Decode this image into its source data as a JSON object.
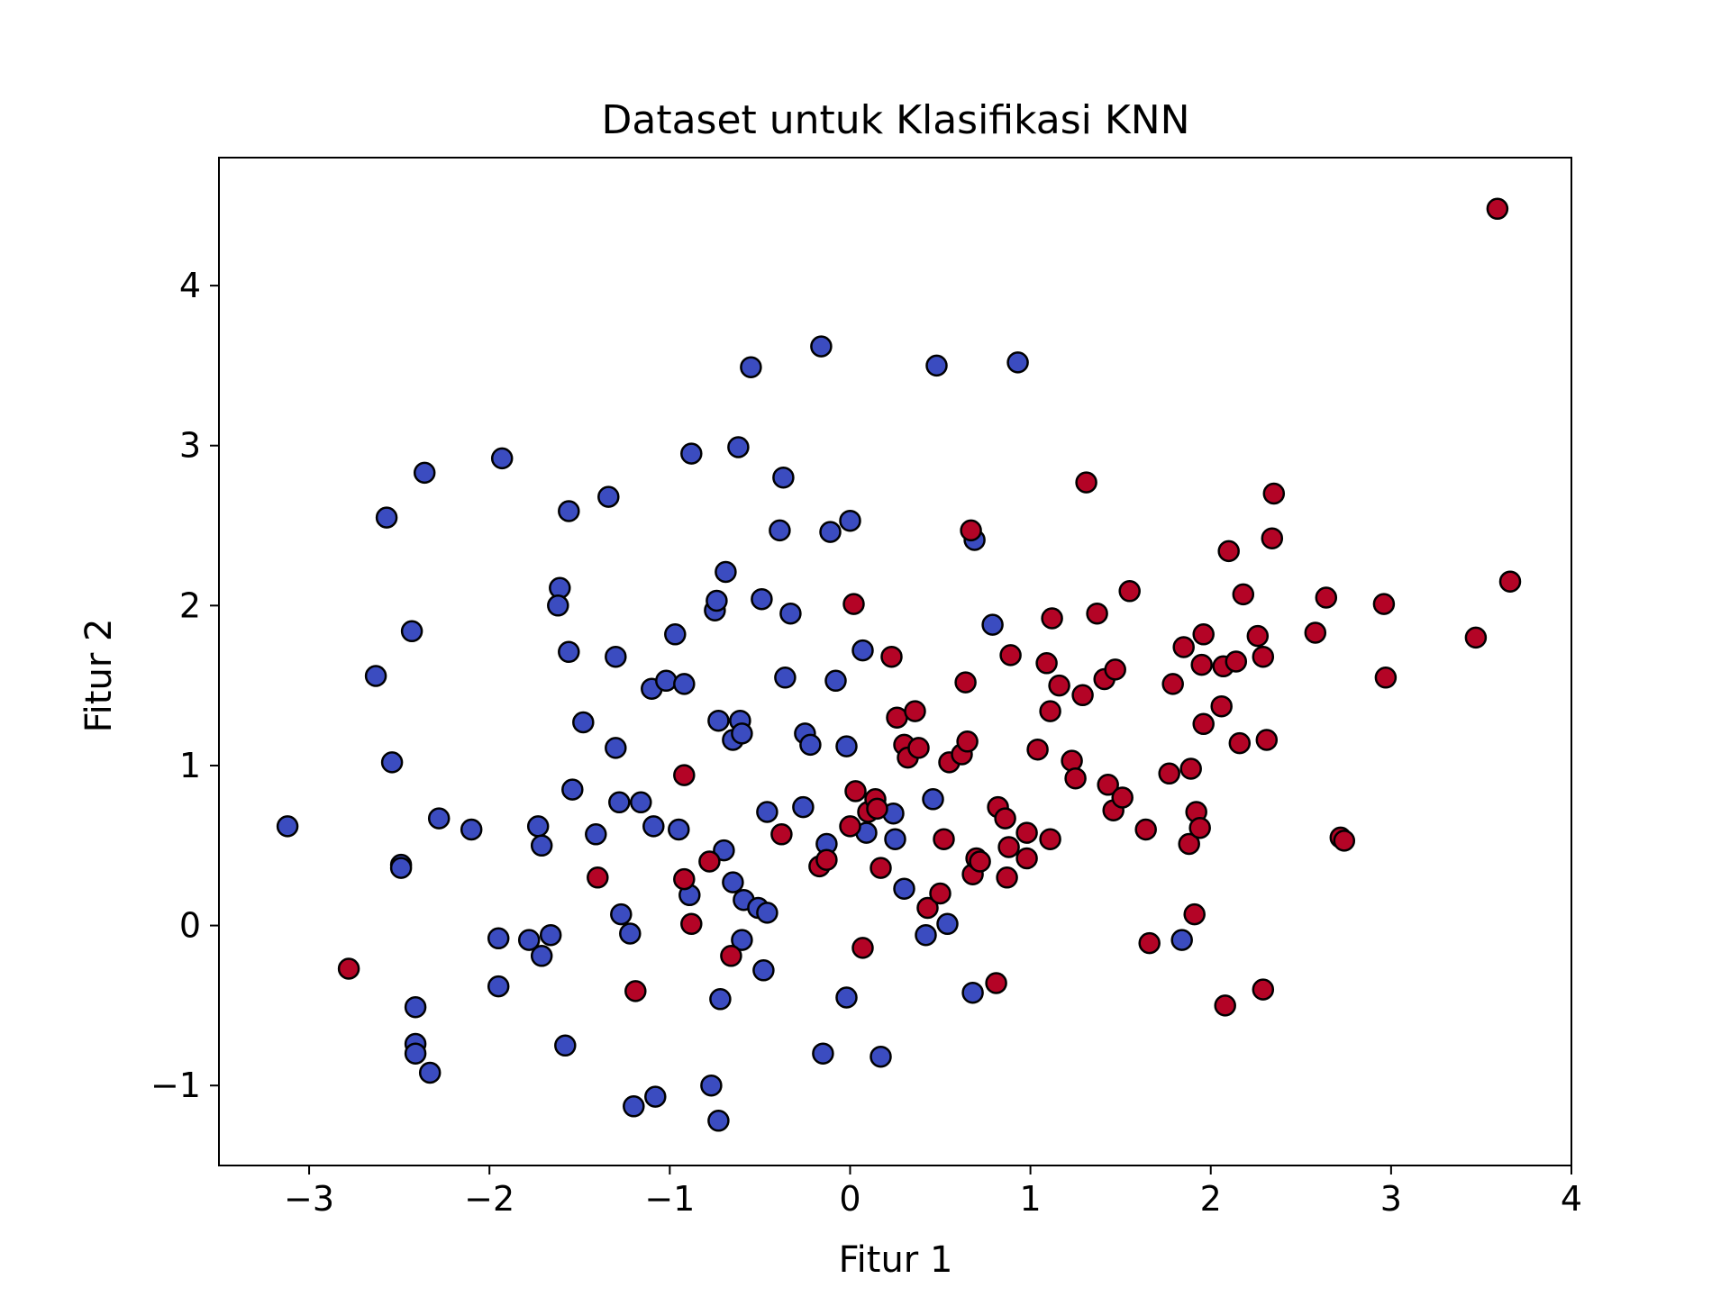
{
  "chart_data": {
    "type": "scatter",
    "title": "Dataset untuk Klasifikasi KNN",
    "xlabel": "Fitur 1",
    "ylabel": "Fitur 2",
    "xlim": [
      -3.5,
      4.0
    ],
    "ylim": [
      -1.5,
      4.8
    ],
    "x_ticks": [
      -3,
      -2,
      -1,
      0,
      1,
      2,
      3,
      4
    ],
    "x_tick_labels": [
      "−3",
      "−2",
      "−1",
      "0",
      "1",
      "2",
      "3",
      "4"
    ],
    "y_ticks": [
      -1,
      0,
      1,
      2,
      3,
      4
    ],
    "y_tick_labels": [
      "−1",
      "0",
      "1",
      "2",
      "3",
      "4"
    ],
    "grid": false,
    "legend": "none",
    "marker_edge_color": "#000000",
    "series": [
      {
        "color": "#3b4cc0",
        "points": [
          [
            -3.12,
            0.62
          ],
          [
            -2.63,
            1.56
          ],
          [
            -2.57,
            2.55
          ],
          [
            -2.54,
            1.02
          ],
          [
            -2.49,
            0.38
          ],
          [
            -2.49,
            0.36
          ],
          [
            -2.43,
            1.84
          ],
          [
            -2.41,
            -0.51
          ],
          [
            -2.41,
            -0.74
          ],
          [
            -2.41,
            -0.8
          ],
          [
            -2.36,
            2.83
          ],
          [
            -2.33,
            -0.92
          ],
          [
            -2.28,
            0.67
          ],
          [
            -2.1,
            0.6
          ],
          [
            -1.95,
            -0.08
          ],
          [
            -1.95,
            -0.38
          ],
          [
            -1.93,
            2.92
          ],
          [
            -1.78,
            -0.09
          ],
          [
            -1.73,
            0.62
          ],
          [
            -1.71,
            0.5
          ],
          [
            -1.71,
            -0.19
          ],
          [
            -1.66,
            -0.06
          ],
          [
            -1.61,
            2.11
          ],
          [
            -1.62,
            2.0
          ],
          [
            -1.58,
            -0.75
          ],
          [
            -1.56,
            1.71
          ],
          [
            -1.56,
            2.59
          ],
          [
            -1.54,
            0.85
          ],
          [
            -1.48,
            1.27
          ],
          [
            -1.41,
            0.57
          ],
          [
            -1.34,
            2.68
          ],
          [
            -1.3,
            1.68
          ],
          [
            -1.3,
            1.11
          ],
          [
            -1.28,
            0.77
          ],
          [
            -1.27,
            0.07
          ],
          [
            -1.22,
            -0.05
          ],
          [
            -1.2,
            -1.13
          ],
          [
            -1.16,
            0.77
          ],
          [
            -1.1,
            1.48
          ],
          [
            -1.09,
            0.62
          ],
          [
            -1.08,
            -1.07
          ],
          [
            -1.02,
            1.53
          ],
          [
            -0.97,
            1.82
          ],
          [
            -0.95,
            0.6
          ],
          [
            -0.92,
            1.51
          ],
          [
            -0.88,
            2.95
          ],
          [
            -0.89,
            0.19
          ],
          [
            -0.77,
            -1.0
          ],
          [
            -0.75,
            1.97
          ],
          [
            -0.74,
            2.03
          ],
          [
            -0.73,
            1.28
          ],
          [
            -0.73,
            -1.22
          ],
          [
            -0.72,
            -0.46
          ],
          [
            -0.7,
            0.47
          ],
          [
            -0.69,
            2.21
          ],
          [
            -0.65,
            0.27
          ],
          [
            -0.65,
            1.16
          ],
          [
            -0.62,
            2.99
          ],
          [
            -0.61,
            1.28
          ],
          [
            -0.6,
            1.2
          ],
          [
            -0.6,
            -0.09
          ],
          [
            -0.59,
            0.16
          ],
          [
            -0.55,
            3.49
          ],
          [
            -0.51,
            0.11
          ],
          [
            -0.49,
            2.04
          ],
          [
            -0.48,
            -0.28
          ],
          [
            -0.46,
            0.08
          ],
          [
            -0.46,
            0.71
          ],
          [
            -0.39,
            2.47
          ],
          [
            -0.37,
            2.8
          ],
          [
            -0.36,
            1.55
          ],
          [
            -0.33,
            1.95
          ],
          [
            -0.26,
            0.74
          ],
          [
            -0.25,
            1.2
          ],
          [
            -0.22,
            1.13
          ],
          [
            -0.16,
            3.62
          ],
          [
            -0.15,
            -0.8
          ],
          [
            -0.13,
            0.51
          ],
          [
            -0.11,
            2.46
          ],
          [
            -0.08,
            1.53
          ],
          [
            -0.02,
            1.12
          ],
          [
            -0.02,
            -0.45
          ],
          [
            0.0,
            2.53
          ],
          [
            0.07,
            1.72
          ],
          [
            0.09,
            0.58
          ],
          [
            0.17,
            -0.82
          ],
          [
            0.24,
            0.7
          ],
          [
            0.25,
            0.54
          ],
          [
            0.3,
            0.23
          ],
          [
            0.46,
            0.79
          ],
          [
            0.42,
            -0.06
          ],
          [
            0.48,
            3.5
          ],
          [
            0.54,
            0.01
          ],
          [
            0.69,
            2.41
          ],
          [
            0.68,
            -0.42
          ],
          [
            0.79,
            1.88
          ],
          [
            0.93,
            3.52
          ],
          [
            1.84,
            -0.09
          ]
        ]
      },
      {
        "color": "#b40426",
        "points": [
          [
            -2.78,
            -0.27
          ],
          [
            -1.4,
            0.3
          ],
          [
            -1.19,
            -0.41
          ],
          [
            -0.92,
            0.94
          ],
          [
            -0.92,
            0.29
          ],
          [
            -0.88,
            0.01
          ],
          [
            -0.78,
            0.4
          ],
          [
            -0.66,
            -0.19
          ],
          [
            -0.38,
            0.57
          ],
          [
            -0.17,
            0.37
          ],
          [
            -0.13,
            0.41
          ],
          [
            0.0,
            0.62
          ],
          [
            0.02,
            2.01
          ],
          [
            0.03,
            0.84
          ],
          [
            0.07,
            -0.14
          ],
          [
            0.1,
            0.71
          ],
          [
            0.14,
            0.79
          ],
          [
            0.15,
            0.73
          ],
          [
            0.17,
            0.36
          ],
          [
            0.23,
            1.68
          ],
          [
            0.26,
            1.3
          ],
          [
            0.3,
            1.13
          ],
          [
            0.32,
            1.05
          ],
          [
            0.36,
            1.34
          ],
          [
            0.38,
            1.11
          ],
          [
            0.43,
            0.11
          ],
          [
            0.5,
            0.2
          ],
          [
            0.52,
            0.54
          ],
          [
            0.55,
            1.02
          ],
          [
            0.62,
            1.07
          ],
          [
            0.64,
            1.52
          ],
          [
            0.65,
            1.15
          ],
          [
            0.67,
            2.47
          ],
          [
            0.68,
            0.32
          ],
          [
            0.7,
            0.42
          ],
          [
            0.72,
            0.4
          ],
          [
            0.81,
            -0.36
          ],
          [
            0.82,
            0.74
          ],
          [
            0.86,
            0.67
          ],
          [
            0.87,
            0.3
          ],
          [
            0.88,
            0.49
          ],
          [
            0.89,
            1.69
          ],
          [
            0.98,
            0.58
          ],
          [
            0.98,
            0.42
          ],
          [
            1.04,
            1.1
          ],
          [
            1.09,
            1.64
          ],
          [
            1.11,
            1.34
          ],
          [
            1.11,
            0.54
          ],
          [
            1.12,
            1.92
          ],
          [
            1.16,
            1.5
          ],
          [
            1.23,
            1.03
          ],
          [
            1.25,
            0.92
          ],
          [
            1.29,
            1.44
          ],
          [
            1.31,
            2.77
          ],
          [
            1.37,
            1.95
          ],
          [
            1.41,
            1.54
          ],
          [
            1.43,
            0.88
          ],
          [
            1.46,
            0.72
          ],
          [
            1.47,
            1.6
          ],
          [
            1.51,
            0.8
          ],
          [
            1.55,
            2.09
          ],
          [
            1.64,
            0.6
          ],
          [
            1.66,
            -0.11
          ],
          [
            1.77,
            0.95
          ],
          [
            1.79,
            1.51
          ],
          [
            1.85,
            1.74
          ],
          [
            1.88,
            0.51
          ],
          [
            1.89,
            0.98
          ],
          [
            1.91,
            0.07
          ],
          [
            1.92,
            0.71
          ],
          [
            1.94,
            0.61
          ],
          [
            1.95,
            1.63
          ],
          [
            1.96,
            1.82
          ],
          [
            1.96,
            1.26
          ],
          [
            2.06,
            1.37
          ],
          [
            2.07,
            1.62
          ],
          [
            2.08,
            -0.5
          ],
          [
            2.1,
            2.34
          ],
          [
            2.14,
            1.65
          ],
          [
            2.16,
            1.14
          ],
          [
            2.18,
            2.07
          ],
          [
            2.26,
            1.81
          ],
          [
            2.29,
            1.68
          ],
          [
            2.29,
            -0.4
          ],
          [
            2.31,
            1.16
          ],
          [
            2.34,
            2.42
          ],
          [
            2.35,
            2.7
          ],
          [
            2.58,
            1.83
          ],
          [
            2.64,
            2.05
          ],
          [
            2.72,
            0.55
          ],
          [
            2.74,
            0.53
          ],
          [
            2.96,
            2.01
          ],
          [
            2.97,
            1.55
          ],
          [
            3.47,
            1.8
          ],
          [
            3.59,
            4.48
          ],
          [
            3.66,
            2.15
          ]
        ]
      }
    ]
  }
}
